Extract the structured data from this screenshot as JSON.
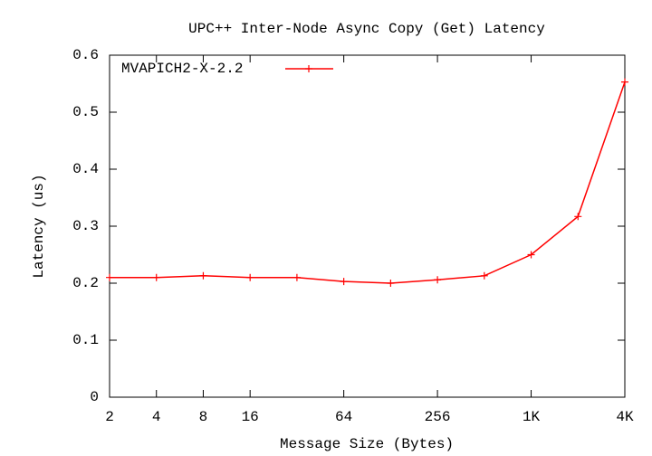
{
  "chart_data": {
    "type": "line",
    "title": "UPC++ Inter-Node Async Copy (Get) Latency",
    "x_label": "Message Size (Bytes)",
    "y_label": "Latency (us)",
    "categories": [
      "2",
      "4",
      "8",
      "16",
      null,
      "64",
      null,
      "256",
      null,
      "1K",
      null,
      "4K"
    ],
    "series": [
      {
        "name": "MVAPICH2-X-2.2",
        "color": "#ff0000",
        "values": [
          0.21,
          0.21,
          0.213,
          0.21,
          0.21,
          0.203,
          0.2,
          0.206,
          0.213,
          0.25,
          0.317,
          0.553
        ]
      }
    ],
    "ylim": [
      0,
      0.6
    ],
    "yticks": [
      0,
      0.1,
      0.2,
      0.3,
      0.4,
      0.5,
      0.6
    ],
    "legend": "top-left"
  }
}
